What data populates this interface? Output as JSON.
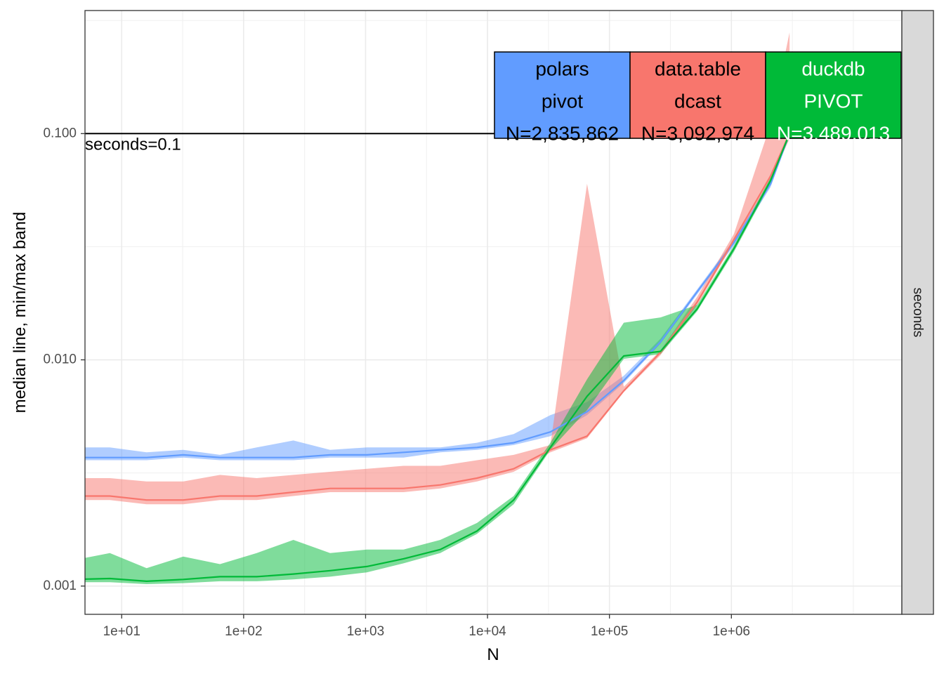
{
  "chart_data": {
    "type": "line",
    "xlabel": "N",
    "ylabel": "median line, min/max band",
    "x_scale": "log10",
    "y_scale": "log10",
    "xlim": [
      5,
      25000000
    ],
    "ylim": [
      0.00075,
      0.35
    ],
    "x_ticks": [
      {
        "value": 10,
        "label": "1e+01"
      },
      {
        "value": 100,
        "label": "1e+02"
      },
      {
        "value": 1000,
        "label": "1e+03"
      },
      {
        "value": 10000,
        "label": "1e+04"
      },
      {
        "value": 100000,
        "label": "1e+05"
      },
      {
        "value": 1000000,
        "label": "1e+06"
      }
    ],
    "y_ticks": [
      {
        "value": 0.001,
        "label": "0.001"
      },
      {
        "value": 0.01,
        "label": "0.010"
      },
      {
        "value": 0.1,
        "label": "0.100"
      }
    ],
    "grid": true,
    "facet_strip": "seconds",
    "reference_line": {
      "value": 0.1,
      "label": "seconds=0.1"
    },
    "series": [
      {
        "name": "polars pivot",
        "color": "#619CFF",
        "x": [
          4,
          8,
          16,
          32,
          64,
          128,
          256,
          512,
          1024,
          2048,
          4096,
          8192,
          16384,
          32768,
          65536,
          131072,
          262144,
          524288,
          1048576,
          2097152,
          3000000
        ],
        "median": [
          0.0037,
          0.0037,
          0.0037,
          0.0038,
          0.0037,
          0.0037,
          0.0037,
          0.0038,
          0.0038,
          0.0039,
          0.004,
          0.0041,
          0.0043,
          0.0048,
          0.0059,
          0.0081,
          0.012,
          0.02,
          0.033,
          0.06,
          0.1
        ],
        "min": [
          0.0036,
          0.0036,
          0.0036,
          0.0037,
          0.0036,
          0.0036,
          0.0036,
          0.0037,
          0.0037,
          0.0037,
          0.0039,
          0.004,
          0.0042,
          0.0046,
          0.0057,
          0.0079,
          0.0118,
          0.0195,
          0.032,
          0.058,
          0.098
        ],
        "max": [
          0.0041,
          0.0041,
          0.0039,
          0.004,
          0.0038,
          0.0041,
          0.0044,
          0.004,
          0.0041,
          0.0041,
          0.0041,
          0.0043,
          0.0047,
          0.0057,
          0.0065,
          0.0085,
          0.0124,
          0.0205,
          0.034,
          0.062,
          0.102
        ],
        "label": {
          "method": "polars",
          "func": "pivot",
          "n": "N=2,835,862",
          "fill": "#619CFF",
          "text_color": "#000000"
        }
      },
      {
        "name": "data.table dcast",
        "color": "#F8766D",
        "x": [
          4,
          8,
          16,
          32,
          64,
          128,
          256,
          512,
          1024,
          2048,
          4096,
          8192,
          16384,
          32768,
          65536,
          131072,
          262144,
          524288,
          1048576,
          2097152,
          3000000
        ],
        "median": [
          0.0025,
          0.0025,
          0.0024,
          0.0024,
          0.0025,
          0.0025,
          0.0026,
          0.0027,
          0.0027,
          0.0027,
          0.0028,
          0.003,
          0.0033,
          0.004,
          0.0046,
          0.0073,
          0.0108,
          0.018,
          0.034,
          0.065,
          0.1
        ],
        "min": [
          0.0024,
          0.0024,
          0.0023,
          0.0023,
          0.0024,
          0.0024,
          0.0025,
          0.0026,
          0.0026,
          0.0026,
          0.0027,
          0.0029,
          0.0032,
          0.0039,
          0.0045,
          0.0072,
          0.0105,
          0.0175,
          0.033,
          0.062,
          0.095
        ],
        "max": [
          0.003,
          0.003,
          0.0029,
          0.0029,
          0.0031,
          0.003,
          0.0031,
          0.0032,
          0.0033,
          0.0034,
          0.0034,
          0.0036,
          0.0038,
          0.0042,
          0.06,
          0.0076,
          0.011,
          0.019,
          0.036,
          0.11,
          0.28
        ],
        "label": {
          "method": "data.table",
          "func": "dcast",
          "n": "N=3,092,974",
          "fill": "#F8766D",
          "text_color": "#000000"
        }
      },
      {
        "name": "duckdb PIVOT",
        "color": "#00BA38",
        "x": [
          4,
          8,
          16,
          32,
          64,
          128,
          256,
          512,
          1024,
          2048,
          4096,
          8192,
          16384,
          32768,
          65536,
          131072,
          262144,
          524288,
          1048576,
          2097152,
          3000000
        ],
        "median": [
          0.00107,
          0.00108,
          0.00105,
          0.00107,
          0.0011,
          0.0011,
          0.00113,
          0.00117,
          0.00122,
          0.00132,
          0.00145,
          0.00175,
          0.0024,
          0.0041,
          0.0069,
          0.0104,
          0.0109,
          0.0168,
          0.031,
          0.062,
          0.1
        ],
        "min": [
          0.00104,
          0.00104,
          0.00102,
          0.00103,
          0.00105,
          0.00105,
          0.00107,
          0.0011,
          0.00115,
          0.00126,
          0.0014,
          0.0017,
          0.0023,
          0.004,
          0.006,
          0.0101,
          0.0106,
          0.0164,
          0.03,
          0.06,
          0.097
        ],
        "max": [
          0.0013,
          0.0014,
          0.0012,
          0.00135,
          0.00125,
          0.0014,
          0.0016,
          0.0014,
          0.00145,
          0.00145,
          0.0016,
          0.0019,
          0.0025,
          0.0043,
          0.0082,
          0.0146,
          0.0154,
          0.0175,
          0.032,
          0.064,
          0.103
        ],
        "label": {
          "method": "duckdb",
          "func": "PIVOT",
          "n": "N=3,489,013",
          "fill": "#00BA38",
          "text_color": "#ffffff"
        }
      }
    ]
  }
}
